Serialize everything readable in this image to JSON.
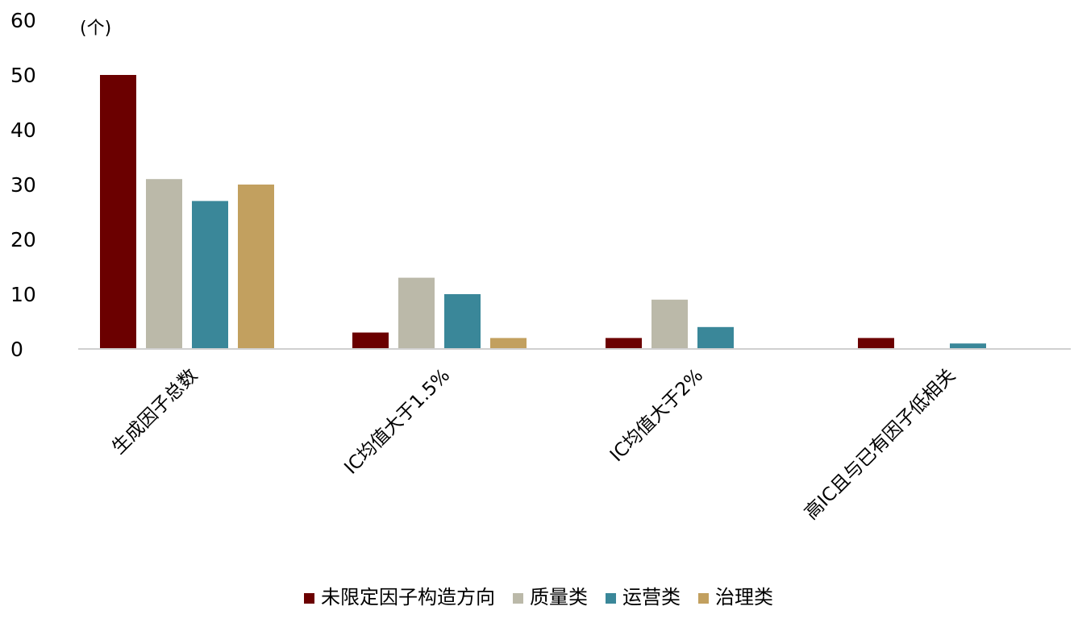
{
  "chart_data": {
    "type": "bar",
    "title": "",
    "xlabel": "",
    "ylabel": "",
    "unit_label": "(个)",
    "categories": [
      "生成因子总数",
      "IC均值大于1.5%",
      "IC均值大于2%",
      "高IC且与已有因子低相关"
    ],
    "series": [
      {
        "name": "未限定因子构造方向",
        "color": "#6b0000",
        "values": [
          50,
          3,
          2,
          2
        ]
      },
      {
        "name": "质量类",
        "color": "#bbb9a9",
        "values": [
          31,
          13,
          9,
          0
        ]
      },
      {
        "name": "运营类",
        "color": "#3a8799",
        "values": [
          27,
          10,
          4,
          1
        ]
      },
      {
        "name": "治理类",
        "color": "#c2a05f",
        "values": [
          30,
          2,
          0,
          0
        ]
      }
    ],
    "ylim": [
      0,
      60
    ],
    "yticks": [
      0,
      10,
      20,
      30,
      40,
      50,
      60
    ],
    "grid": false,
    "legend_position": "bottom-center"
  }
}
